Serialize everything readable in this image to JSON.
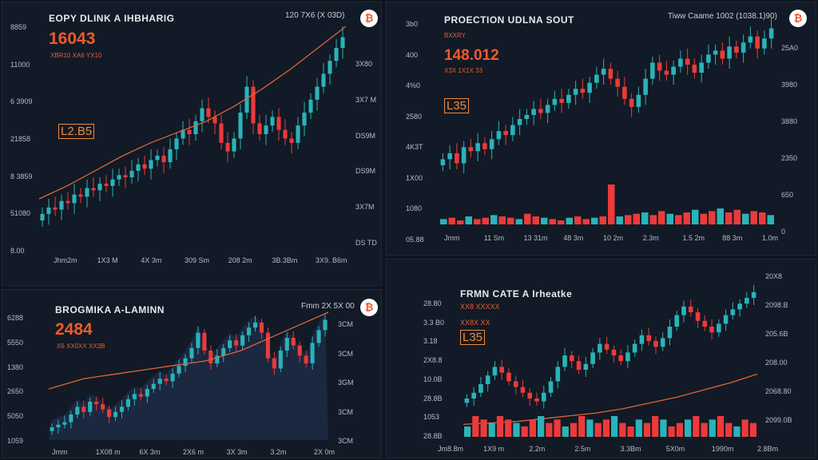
{
  "colors": {
    "background": "#0e1520",
    "panel": "#111a26",
    "bullish": "#2ab3b8",
    "bearish": "#ec3a3a",
    "accent": "#f05a2c",
    "trendline": "#e0643a"
  },
  "panels": [
    {
      "title": "EOPY DLINK A IHBHARIG",
      "header_right": "120 7X6 (X 03D)",
      "big_value": "16043",
      "sub_value": "XBR10 XA6 YX10",
      "tag": "L2.B5",
      "icon": "bitcoin-icon",
      "left_axis": [
        "8859",
        "11000",
        "6 3909",
        "21858",
        "8 3859",
        "51080",
        "8.00"
      ],
      "right_axis": [
        "3X80",
        "3X7 M",
        "DS9M",
        "DS9M",
        "3X7M",
        "DS TD"
      ],
      "x_axis": [
        "Jhm2m",
        "1X3 M",
        "4X 3m",
        "309 Sm",
        "208 2m",
        "3B.3Bm",
        "3X9. B6m"
      ]
    },
    {
      "title": "PROECTION UDLNA SOUT",
      "header_right": "Tiww Caame 1002 (1038.1)90)",
      "big_value": "148.012",
      "sub_value": "X3X 1X1X 33",
      "tag": "L35",
      "small_tag": "BXXRY",
      "icon": "bitcoin-icon",
      "left_axis": [
        "3b0",
        "400",
        "4%0",
        "2580",
        "4K3T",
        "1X00",
        "1080",
        "05.88"
      ],
      "right_axis": [
        "25A0",
        "3980",
        "3880",
        "2350",
        "650",
        "0"
      ],
      "x_axis": [
        "Jmm",
        "11 Sm",
        "13 31m",
        "48 3m",
        "10 2m",
        "2.3m",
        "1.5 2m",
        "88 3m",
        "1.0m"
      ]
    },
    {
      "title": "BROGMIKA A-LAMINN",
      "header_right": "Fmm 2X 5X 00",
      "big_value": "2484",
      "sub_value": "X6 XX0XX XX3B",
      "icon": "bitcoin-icon",
      "left_axis": [
        "6288",
        "5550",
        "1380",
        "2650",
        "5050",
        "1059"
      ],
      "right_axis": [
        "3CM",
        "3CM",
        "3GM",
        "3CM",
        "3CM"
      ],
      "x_axis": [
        "Jmm",
        "1X08 m",
        "6X 3m",
        "2X6 m",
        "3X 3m",
        "3.2m",
        "2X 0m"
      ]
    },
    {
      "title": "FRMN CATE A Irheatke",
      "big_value": "XX8 XXXXX",
      "sub_value": "XX8X XX",
      "tag": "L35",
      "left_axis": [
        "28.80",
        "3.3 B0",
        "3.18",
        "2X8.8",
        "10.0B",
        "28.8B",
        "1053",
        "28.8B"
      ],
      "right_axis": [
        "20X8",
        "2098.B",
        "205.6B",
        "208.00",
        "2068.80",
        "2099.0B"
      ],
      "x_axis": [
        "Jm8.8m",
        "1X9 m",
        "2.2m",
        "2.5m",
        "3.3Bm",
        "5X0m",
        "1990m",
        "2.8Bm"
      ]
    }
  ],
  "chart_data": [
    {
      "type": "candlestick",
      "title": "EOPY DLINK A IHBHARIG",
      "series": [
        {
          "values": [
            13,
            16,
            15,
            19,
            18,
            22,
            21,
            25,
            24,
            27,
            26,
            29,
            31,
            30,
            33,
            36,
            34,
            38,
            40,
            37,
            43,
            48,
            52,
            50,
            56,
            62,
            58,
            55,
            46,
            42,
            48,
            60,
            72,
            55,
            50,
            54,
            58,
            52,
            48,
            46,
            54,
            60,
            66,
            72,
            78,
            84,
            90,
            95
          ]
        }
      ],
      "trendline": [
        20,
        26,
        33,
        40,
        46,
        51,
        56,
        63,
        71,
        80,
        90,
        100
      ],
      "volume": false
    },
    {
      "type": "candlestick",
      "title": "PROECTION UDLNA SOUT",
      "series": [
        {
          "values": [
            30,
            33,
            28,
            36,
            34,
            38,
            35,
            40,
            44,
            42,
            47,
            50,
            52,
            55,
            53,
            57,
            60,
            58,
            62,
            65,
            63,
            68,
            72,
            75,
            70,
            66,
            60,
            56,
            62,
            70,
            78,
            74,
            72,
            76,
            80,
            77,
            73,
            78,
            82,
            84,
            80,
            86,
            83,
            88,
            91,
            85,
            90,
            95
          ]
        }
      ],
      "volume": [
        4,
        5,
        3,
        6,
        4,
        5,
        7,
        6,
        5,
        4,
        8,
        6,
        5,
        4,
        3,
        5,
        6,
        4,
        5,
        6,
        30,
        6,
        7,
        8,
        9,
        7,
        10,
        8,
        7,
        9,
        11,
        8,
        10,
        12,
        9,
        11,
        8,
        10,
        9,
        7
      ]
    },
    {
      "type": "candlestick",
      "title": "BROGMIKA A-LAMINN",
      "series": [
        {
          "values": [
            10,
            12,
            14,
            20,
            26,
            22,
            30,
            28,
            24,
            18,
            22,
            26,
            32,
            36,
            34,
            40,
            44,
            48,
            46,
            52,
            58,
            64,
            72,
            84,
            70,
            60,
            66,
            72,
            78,
            74,
            82,
            88,
            92,
            84,
            64,
            56,
            70,
            80,
            74,
            66,
            60,
            76,
            86,
            94
          ]
        }
      ],
      "trendline": [
        40,
        44,
        48,
        50,
        52,
        54,
        56,
        58,
        60,
        62,
        66,
        70,
        76,
        82,
        88,
        94,
        100
      ],
      "volume": false
    },
    {
      "type": "candlestick",
      "title": "FRMN CATE A Irheatke",
      "series": [
        {
          "values": [
            20,
            24,
            30,
            36,
            42,
            38,
            32,
            28,
            24,
            20,
            18,
            24,
            32,
            42,
            50,
            46,
            40,
            44,
            52,
            58,
            54,
            50,
            46,
            52,
            58,
            64,
            60,
            56,
            62,
            70,
            78,
            84,
            80,
            74,
            70,
            66,
            72,
            78,
            82,
            86,
            90,
            94
          ]
        }
      ],
      "trendline": [
        2,
        3,
        4,
        6,
        8,
        10,
        13,
        17,
        21,
        26,
        31,
        37
      ],
      "volume": [
        3,
        6,
        5,
        4,
        6,
        5,
        4,
        3,
        5,
        6,
        4,
        5,
        3,
        4,
        6,
        5,
        4,
        5,
        6,
        4,
        3,
        5,
        4,
        6,
        5,
        3,
        4,
        5,
        6,
        4,
        5,
        6,
        4,
        3,
        5,
        4
      ]
    }
  ]
}
